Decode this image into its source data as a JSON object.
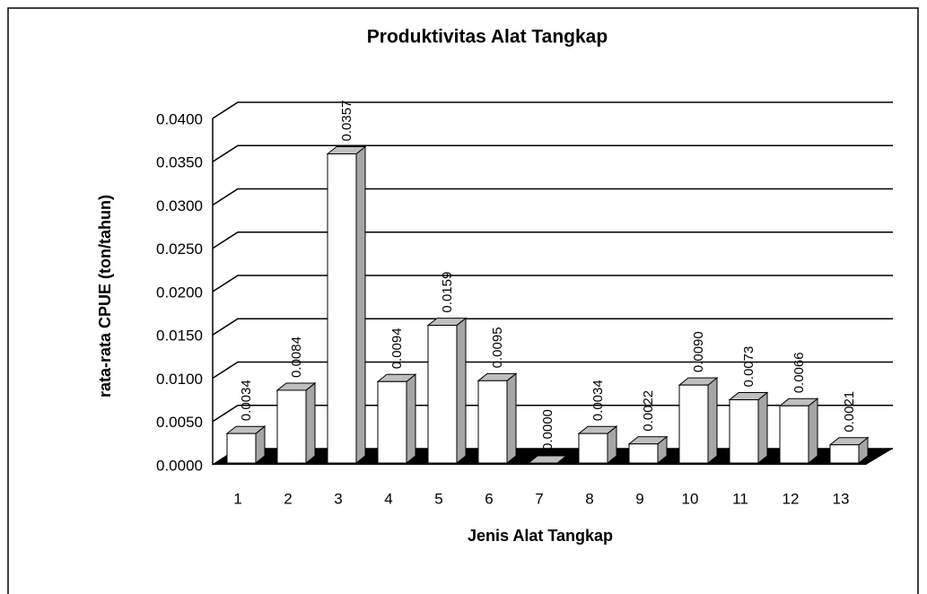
{
  "chart_data": {
    "type": "bar3d",
    "title": "Produktivitas Alat Tangkap",
    "x_label": "Jenis Alat Tangkap",
    "y_label": "rata-rata CPUE (ton/tahun)",
    "categories": [
      "1",
      "2",
      "3",
      "4",
      "5",
      "6",
      "7",
      "8",
      "9",
      "10",
      "11",
      "12",
      "13"
    ],
    "values": [
      0.0034,
      0.0084,
      0.0357,
      0.0094,
      0.0159,
      0.0095,
      0,
      0.0034,
      0.0022,
      0.009,
      0.0073,
      0.0066,
      0.0021
    ],
    "value_labels": [
      "0.0034",
      "0.0084",
      "0.0357",
      "0.0094",
      "0.0159",
      "0.0095",
      "0.0000",
      "0.0034",
      "0.0022",
      "0.0090",
      "0.0073",
      "0.0066",
      "0.0021"
    ],
    "color": "#ffffff",
    "ylim": [
      0,
      0.04
    ],
    "yticks": [
      {
        "value": 0,
        "label": "0.0000"
      },
      {
        "value": 0.005,
        "label": "0.0050"
      },
      {
        "value": 0.01,
        "label": "0.0100"
      },
      {
        "value": 0.015,
        "label": "0.0150"
      },
      {
        "value": 0.02,
        "label": "0.0200"
      },
      {
        "value": 0.025,
        "label": "0.0250"
      },
      {
        "value": 0.03,
        "label": "0.0300"
      },
      {
        "value": 0.035,
        "label": "0.0350"
      },
      {
        "value": 0.04,
        "label": "0.0400"
      }
    ],
    "grid": true
  }
}
